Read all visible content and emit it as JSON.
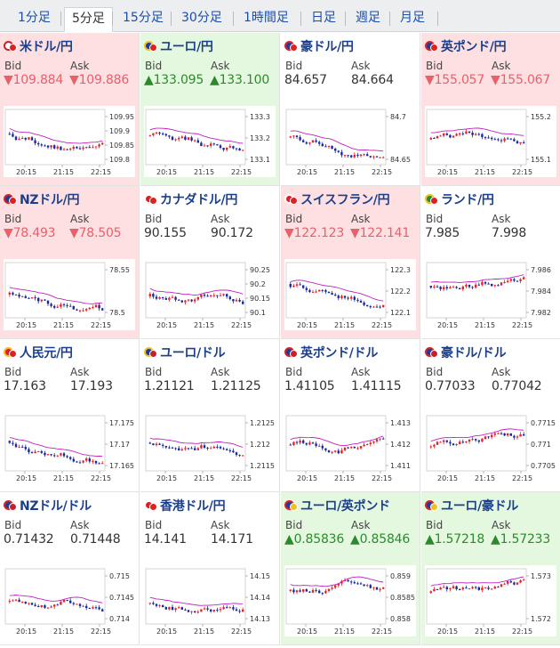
{
  "tabs": [
    {
      "label": "1分足",
      "active": false
    },
    {
      "label": "5分足",
      "active": true
    },
    {
      "label": "15分足",
      "active": false
    },
    {
      "label": "30分足",
      "active": false
    },
    {
      "label": "1時間足",
      "active": false
    },
    {
      "label": "日足",
      "active": false
    },
    {
      "label": "週足",
      "active": false
    },
    {
      "label": "月足",
      "active": false
    }
  ],
  "labels": {
    "bid": "Bid",
    "ask": "Ask"
  },
  "colors": {
    "down_bg": "#ffe0e2",
    "up_bg": "#e4f8e0",
    "down_text": "#e8606a",
    "up_text": "#2c8a2c",
    "candle_up": "#e8202a",
    "candle_down": "#1a2a9c",
    "ma_line": "#c020c0",
    "ma_line2": "#20a0a0"
  },
  "pairs": [
    {
      "name": "米ドル/円",
      "dir": "down",
      "bid": "109.884",
      "ask": "109.886",
      "flags": [
        "us",
        "jp"
      ],
      "chart": {
        "yticks": [
          "109.95",
          "109.9",
          "109.85",
          "109.8"
        ],
        "xticks": [
          "20:15",
          "21:15",
          "22:15"
        ]
      }
    },
    {
      "name": "ユーロ/円",
      "dir": "up",
      "bid": "133.095",
      "ask": "133.100",
      "flags": [
        "eu",
        "jp"
      ],
      "chart": {
        "yticks": [
          "133.3",
          "133.2",
          "133.1"
        ],
        "xticks": [
          "20:15",
          "21:15",
          "22:15"
        ]
      }
    },
    {
      "name": "豪ドル/円",
      "dir": "flat",
      "bid": "84.657",
      "ask": "84.664",
      "flags": [
        "au",
        "jp"
      ],
      "chart": {
        "yticks": [
          "84.7",
          "84.65"
        ],
        "xticks": [
          "20:15",
          "21:15",
          "22:15"
        ]
      }
    },
    {
      "name": "英ポンド/円",
      "dir": "down",
      "bid": "155.057",
      "ask": "155.067",
      "flags": [
        "gb",
        "jp"
      ],
      "chart": {
        "yticks": [
          "155.2",
          "155.1"
        ],
        "xticks": [
          "20:15",
          "21:15",
          "22:15"
        ]
      }
    },
    {
      "name": "NZドル/円",
      "dir": "down",
      "bid": "78.493",
      "ask": "78.505",
      "flags": [
        "nz",
        "jp"
      ],
      "chart": {
        "yticks": [
          "78.55",
          "78.5"
        ],
        "xticks": [
          "20:15",
          "21:15",
          "22:15"
        ]
      }
    },
    {
      "name": "カナダドル/円",
      "dir": "flat",
      "bid": "90.155",
      "ask": "90.172",
      "flags": [
        "ca",
        "jp"
      ],
      "chart": {
        "yticks": [
          "90.25",
          "90.2",
          "90.15",
          "90.1"
        ],
        "xticks": [
          "20:15",
          "21:15",
          "22:15"
        ]
      }
    },
    {
      "name": "スイスフラン/円",
      "dir": "down",
      "bid": "122.123",
      "ask": "122.141",
      "flags": [
        "ch",
        "jp"
      ],
      "chart": {
        "yticks": [
          "122.3",
          "122.2",
          "122.1"
        ],
        "xticks": [
          "20:15",
          "21:15",
          "22:15"
        ]
      }
    },
    {
      "name": "ランド/円",
      "dir": "flat",
      "bid": "7.985",
      "ask": "7.998",
      "flags": [
        "za",
        "jp"
      ],
      "chart": {
        "yticks": [
          "7.986",
          "7.984",
          "7.982"
        ],
        "xticks": [
          "20:15",
          "21:15",
          "22:15"
        ]
      }
    },
    {
      "name": "人民元/円",
      "dir": "flat",
      "bid": "17.163",
      "ask": "17.193",
      "flags": [
        "cn",
        "jp"
      ],
      "chart": {
        "yticks": [
          "17.175",
          "17.17",
          "17.165"
        ],
        "xticks": [
          "20:15",
          "21:15",
          "22:15"
        ]
      }
    },
    {
      "name": "ユーロ/ドル",
      "dir": "flat",
      "bid": "1.21121",
      "ask": "1.21125",
      "flags": [
        "eu",
        "us"
      ],
      "chart": {
        "yticks": [
          "1.2125",
          "1.212",
          "1.2115"
        ],
        "xticks": [
          "20:15",
          "21:15",
          "22:15"
        ]
      }
    },
    {
      "name": "英ポンド/ドル",
      "dir": "flat",
      "bid": "1.41105",
      "ask": "1.41115",
      "flags": [
        "gb",
        "us"
      ],
      "chart": {
        "yticks": [
          "1.413",
          "1.412",
          "1.411"
        ],
        "xticks": [
          "20:15",
          "21:15",
          "22:15"
        ]
      }
    },
    {
      "name": "豪ドル/ドル",
      "dir": "flat",
      "bid": "0.77033",
      "ask": "0.77042",
      "flags": [
        "au",
        "us"
      ],
      "chart": {
        "yticks": [
          "0.7715",
          "0.771",
          "0.7705"
        ],
        "xticks": [
          "20:15",
          "21:15",
          "22:15"
        ]
      }
    },
    {
      "name": "NZドル/ドル",
      "dir": "flat",
      "bid": "0.71432",
      "ask": "0.71448",
      "flags": [
        "nz",
        "us"
      ],
      "chart": {
        "yticks": [
          "0.715",
          "0.7145",
          "0.714"
        ],
        "xticks": [
          "20:15",
          "21:15",
          "22:15"
        ]
      }
    },
    {
      "name": "香港ドル/円",
      "dir": "flat",
      "bid": "14.141",
      "ask": "14.171",
      "flags": [
        "hk",
        "jp"
      ],
      "chart": {
        "yticks": [
          "14.15",
          "14.14",
          "14.13"
        ],
        "xticks": [
          "20:15",
          "21:15",
          "22:15"
        ]
      }
    },
    {
      "name": "ユーロ/英ポンド",
      "dir": "up",
      "bid": "0.85836",
      "ask": "0.85846",
      "flags": [
        "gb",
        "eu"
      ],
      "chart": {
        "yticks": [
          "0.859",
          "0.8585",
          "0.858"
        ],
        "xticks": [
          "20:15",
          "21:15",
          "22:15"
        ]
      }
    },
    {
      "name": "ユーロ/豪ドル",
      "dir": "up",
      "bid": "1.57218",
      "ask": "1.57233",
      "flags": [
        "au",
        "eu"
      ],
      "chart": {
        "yticks": [
          "1.573",
          "1.572"
        ],
        "xticks": [
          "20:15",
          "21:15",
          "22:15"
        ]
      }
    }
  ]
}
